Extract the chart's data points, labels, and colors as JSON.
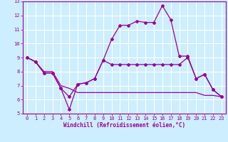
{
  "xlabel": "Windchill (Refroidissement éolien,°C)",
  "ylabel": "",
  "background_color": "#cceeff",
  "grid_color": "#ffffff",
  "line_color": "#990099",
  "xlim": [
    -0.5,
    23.5
  ],
  "ylim": [
    5,
    13
  ],
  "xticks": [
    0,
    1,
    2,
    3,
    4,
    5,
    6,
    7,
    8,
    9,
    10,
    11,
    12,
    13,
    14,
    15,
    16,
    17,
    18,
    19,
    20,
    21,
    22,
    23
  ],
  "yticks": [
    5,
    6,
    7,
    8,
    9,
    10,
    11,
    12,
    13
  ],
  "line_main_x": [
    0,
    1,
    2,
    3,
    4,
    5,
    6,
    7,
    8,
    9,
    10,
    11,
    12,
    13,
    14,
    15,
    16,
    17,
    18,
    19,
    20,
    21,
    22,
    23
  ],
  "line_main_y": [
    9.0,
    8.7,
    7.9,
    7.9,
    6.8,
    5.3,
    7.1,
    7.2,
    7.5,
    8.8,
    10.3,
    11.3,
    11.3,
    11.6,
    11.5,
    11.5,
    12.7,
    11.7,
    9.1,
    9.1,
    7.5,
    7.8,
    6.7,
    6.2
  ],
  "line_mid_x": [
    0,
    1,
    2,
    3,
    4,
    5,
    6,
    7,
    8,
    9,
    10,
    11,
    12,
    13,
    14,
    15,
    16,
    17,
    18,
    19,
    20,
    21,
    22,
    23
  ],
  "line_mid_y": [
    9.0,
    8.7,
    7.9,
    7.9,
    6.8,
    6.2,
    7.1,
    7.2,
    7.5,
    8.8,
    8.5,
    8.5,
    8.5,
    8.5,
    8.5,
    8.5,
    8.5,
    8.5,
    8.5,
    9.0,
    7.5,
    7.8,
    6.7,
    6.2
  ],
  "line_bot_x": [
    0,
    1,
    2,
    3,
    4,
    5,
    6,
    7,
    8,
    9,
    10,
    11,
    12,
    13,
    14,
    15,
    16,
    17,
    18,
    19,
    20,
    21,
    22,
    23
  ],
  "line_bot_y": [
    9.0,
    8.7,
    8.0,
    8.0,
    7.0,
    6.8,
    6.5,
    6.5,
    6.5,
    6.5,
    6.5,
    6.5,
    6.5,
    6.5,
    6.5,
    6.5,
    6.5,
    6.5,
    6.5,
    6.5,
    6.5,
    6.3,
    6.3,
    6.2
  ]
}
